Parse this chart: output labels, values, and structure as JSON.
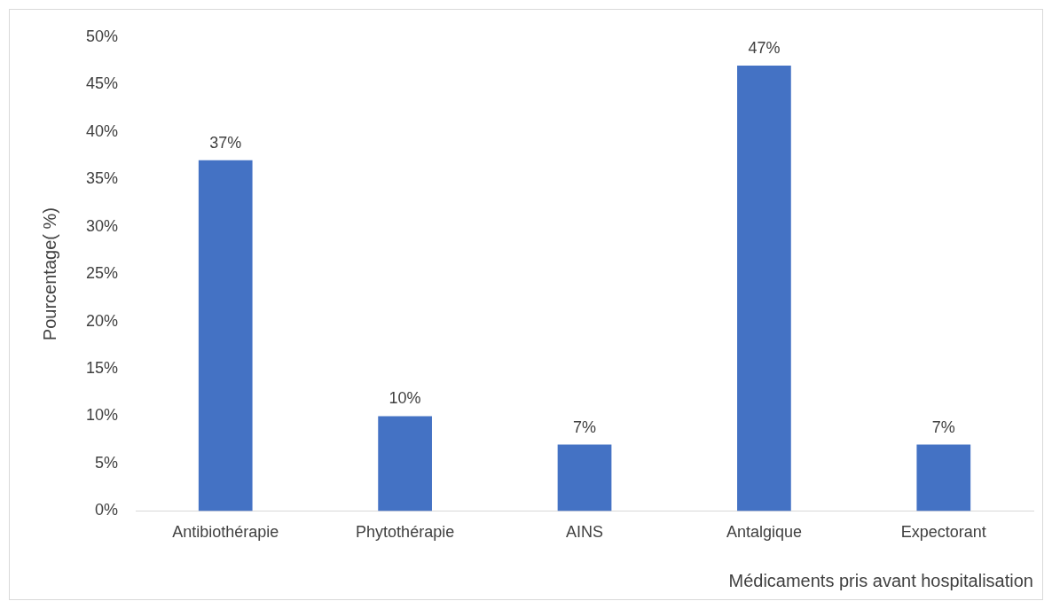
{
  "chart_data": {
    "type": "bar",
    "xlabel": "Médicaments pris avant hospitalisation",
    "ylabel": "Pourcentage( %)",
    "categories": [
      "Antibiothérapie",
      "Phytothérapie",
      "AINS",
      "Antalgique",
      "Expectorant"
    ],
    "values": [
      37,
      10,
      7,
      47,
      7
    ],
    "value_labels": [
      "37%",
      "10%",
      "7%",
      "47%",
      "7%"
    ],
    "color": "#4472c4",
    "ylim": [
      0,
      50
    ],
    "yticks": [
      {
        "value": 0,
        "label": "0%"
      },
      {
        "value": 5,
        "label": "5%"
      },
      {
        "value": 10,
        "label": "10%"
      },
      {
        "value": 15,
        "label": "15%"
      },
      {
        "value": 20,
        "label": "20%"
      },
      {
        "value": 25,
        "label": "25%"
      },
      {
        "value": 30,
        "label": "30%"
      },
      {
        "value": 35,
        "label": "35%"
      },
      {
        "value": 40,
        "label": "40%"
      },
      {
        "value": 45,
        "label": "45%"
      },
      {
        "value": 50,
        "label": "50%"
      }
    ],
    "grid": false,
    "legend": false
  }
}
